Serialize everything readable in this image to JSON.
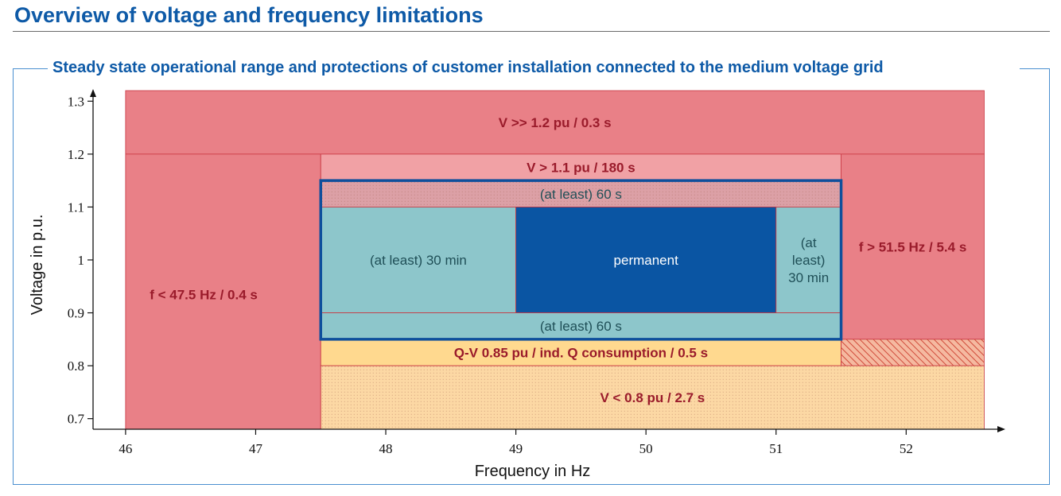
{
  "page": {
    "title": "Overview of voltage and frequency limitations"
  },
  "chart_data": {
    "type": "area",
    "title": "Steady state operational range and protections of customer installation connected to the medium voltage grid",
    "xlabel": "Frequency in Hz",
    "ylabel": "Voltage in p.u.",
    "xlim": [
      45.75,
      52.75
    ],
    "ylim": [
      0.68,
      1.32
    ],
    "x_ticks": [
      46,
      47,
      48,
      49,
      50,
      51,
      52
    ],
    "y_ticks": [
      0.7,
      0.8,
      0.9,
      1,
      1.1,
      1.2,
      1.3
    ],
    "y_tick_labels": [
      "0.7",
      "0.8",
      "0.9",
      "1",
      "1.1",
      "1.2",
      "1.3"
    ],
    "zones": [
      {
        "id": "over-voltage-fast",
        "label": "V >> 1.2 pu / 0.3 s",
        "x": [
          46,
          52.6
        ],
        "y": [
          1.2,
          1.32
        ],
        "color": "#e98087",
        "label_color": "#9a1b2b",
        "bold": true
      },
      {
        "id": "under-frequency",
        "label": "f < 47.5 Hz / 0.4 s",
        "x": [
          46,
          47.5
        ],
        "y": [
          0.68,
          1.2
        ],
        "color": "#e98087",
        "label_color": "#9a1b2b",
        "bold": true,
        "label_at": [
          46.6,
          0.935
        ]
      },
      {
        "id": "over-frequency",
        "label": "f > 51.5 Hz / 5.4 s",
        "x": [
          51.5,
          52.6
        ],
        "y": [
          0.85,
          1.2
        ],
        "color": "#e98087",
        "label_color": "#9a1b2b",
        "bold": true
      },
      {
        "id": "over-voltage-slow",
        "label": "V > 1.1 pu / 180 s",
        "x": [
          47.5,
          51.5
        ],
        "y": [
          1.15,
          1.2
        ],
        "color": "#f1a1a5",
        "label_color": "#9a1b2b",
        "bold": true
      },
      {
        "id": "upper-60s",
        "label": "(at least) 60 s",
        "x": [
          47.5,
          51.5
        ],
        "y": [
          1.1,
          1.15
        ],
        "color": "#dca0a6",
        "label_color": "#1f4f57",
        "bold": false,
        "dotted": true
      },
      {
        "id": "left-30min",
        "label": "(at least) 30 min",
        "x": [
          47.5,
          49
        ],
        "y": [
          0.9,
          1.1
        ],
        "color": "#8dc6cb",
        "label_color": "#1f4f57",
        "bold": false
      },
      {
        "id": "permanent",
        "label": "permanent",
        "x": [
          49,
          51
        ],
        "y": [
          0.9,
          1.1
        ],
        "color": "#0a55a3",
        "label_color": "#ffffff",
        "bold": false
      },
      {
        "id": "right-30min",
        "label_lines": [
          "(at",
          "least)",
          "30 min"
        ],
        "x": [
          51,
          51.5
        ],
        "y": [
          0.9,
          1.1
        ],
        "color": "#8dc6cb",
        "label_color": "#1f4f57",
        "bold": false
      },
      {
        "id": "lower-60s",
        "label": "(at least) 60 s",
        "x": [
          47.5,
          51.5
        ],
        "y": [
          0.85,
          0.9
        ],
        "color": "#8dc6cb",
        "label_color": "#1f4f57",
        "bold": false
      },
      {
        "id": "q-v-protection",
        "label": "Q-V 0.85 pu / ind. Q consumption / 0.5 s",
        "x": [
          47.5,
          51.5
        ],
        "y": [
          0.8,
          0.85
        ],
        "color": "#ffd98f",
        "label_color": "#9a1b2b",
        "bold": true
      },
      {
        "id": "q-v-hatched",
        "label": "",
        "x": [
          51.5,
          52.6
        ],
        "y": [
          0.8,
          0.85
        ],
        "color": "#f5b9a0",
        "hatched": true
      },
      {
        "id": "under-voltage",
        "label": "V < 0.8 pu / 2.7 s",
        "x": [
          47.5,
          52.6
        ],
        "y": [
          0.68,
          0.8
        ],
        "color": "#fcd8a4",
        "label_color": "#9a1b2b",
        "bold": true,
        "dotted": true
      }
    ],
    "operational_range": {
      "x": [
        47.5,
        51.5
      ],
      "y": [
        0.85,
        1.15
      ],
      "border_color": "#0e4f9c"
    }
  }
}
